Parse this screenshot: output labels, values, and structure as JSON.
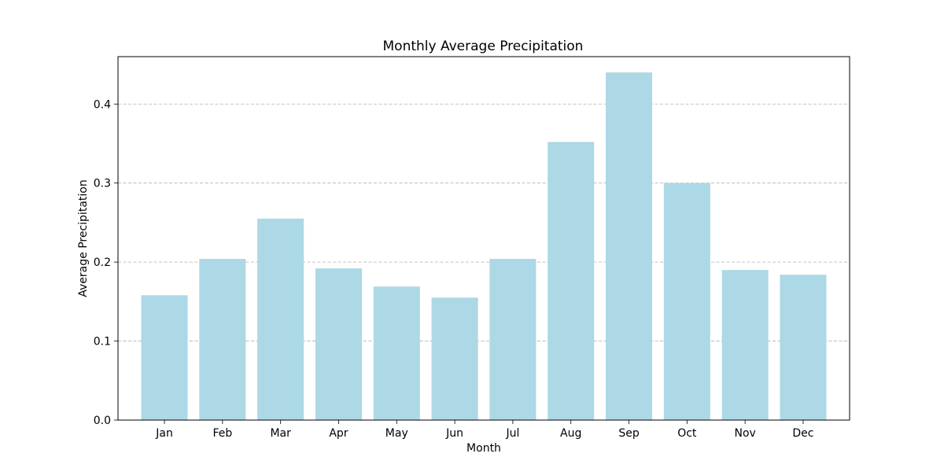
{
  "chart_data": {
    "type": "bar",
    "title": "Monthly Average Precipitation",
    "xlabel": "Month",
    "ylabel": "Average Precipitation",
    "categories": [
      "Jan",
      "Feb",
      "Mar",
      "Apr",
      "May",
      "Jun",
      "Jul",
      "Aug",
      "Sep",
      "Oct",
      "Nov",
      "Dec"
    ],
    "values": [
      0.158,
      0.204,
      0.255,
      0.192,
      0.169,
      0.155,
      0.204,
      0.352,
      0.44,
      0.3,
      0.19,
      0.184
    ],
    "ylim": [
      0,
      0.46
    ],
    "yticks": [
      0.0,
      0.1,
      0.2,
      0.3,
      0.4
    ],
    "ytick_labels": [
      "0.0",
      "0.1",
      "0.2",
      "0.3",
      "0.4"
    ],
    "grid": {
      "axis": "y",
      "style": "dashed"
    },
    "colors": {
      "bar": "#add8e6",
      "grid": "#b0b0b0",
      "axis": "#000000"
    }
  }
}
